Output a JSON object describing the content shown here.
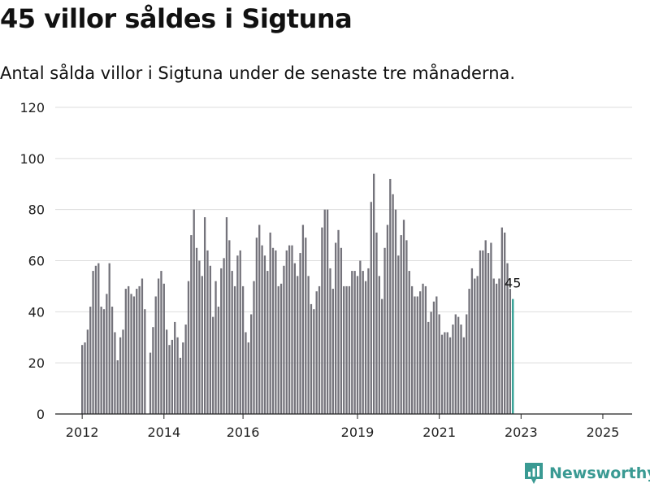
{
  "header": {
    "title": "45 villor såldes i Sigtuna",
    "subtitle": "Antal sålda villor i Sigtuna under de senaste tre månaderna."
  },
  "brand": {
    "name": "Newsworthy",
    "icon": "newsworthy-logo-icon"
  },
  "colors": {
    "bar": "#74737b",
    "highlight": "#2e9d92",
    "grid": "#dddddd",
    "brand": "#3a9a93"
  },
  "chart_data": {
    "type": "bar",
    "title": "45 villor såldes i Sigtuna",
    "subtitle": "Antal sålda villor i Sigtuna under de senaste tre månaderna.",
    "ylim": [
      0,
      120
    ],
    "yticks": [
      0,
      20,
      40,
      60,
      80,
      100,
      120
    ],
    "xticks": [
      "2012",
      "2014",
      "2016",
      "2019",
      "2021",
      "2023",
      "2025"
    ],
    "grid": true,
    "highlight_label": "45",
    "values": [
      27,
      28,
      33,
      42,
      56,
      58,
      59,
      42,
      41,
      47,
      59,
      42,
      32,
      21,
      30,
      33,
      49,
      50,
      47,
      46,
      49,
      50,
      53,
      41,
      0,
      24,
      34,
      46,
      53,
      56,
      51,
      33,
      27,
      29,
      36,
      30,
      22,
      28,
      35,
      52,
      70,
      80,
      65,
      60,
      54,
      77,
      64,
      58,
      38,
      52,
      42,
      57,
      61,
      77,
      68,
      56,
      50,
      62,
      64,
      50,
      32,
      28,
      39,
      52,
      69,
      74,
      66,
      62,
      56,
      71,
      65,
      64,
      50,
      51,
      58,
      64,
      66,
      66,
      59,
      54,
      63,
      74,
      69,
      54,
      43,
      41,
      48,
      50,
      73,
      80,
      80,
      57,
      49,
      67,
      72,
      65,
      50,
      50,
      50,
      56,
      56,
      54,
      60,
      56,
      52,
      57,
      83,
      94,
      71,
      54,
      45,
      65,
      74,
      92,
      86,
      80,
      62,
      70,
      76,
      68,
      56,
      50,
      46,
      46,
      48,
      51,
      50,
      36,
      40,
      44,
      46,
      39,
      31,
      32,
      32,
      30,
      35,
      39,
      38,
      35,
      30,
      39,
      49,
      57,
      53,
      54,
      64,
      64,
      68,
      63,
      67,
      53,
      51,
      53,
      73,
      71,
      59,
      49,
      45
    ]
  }
}
